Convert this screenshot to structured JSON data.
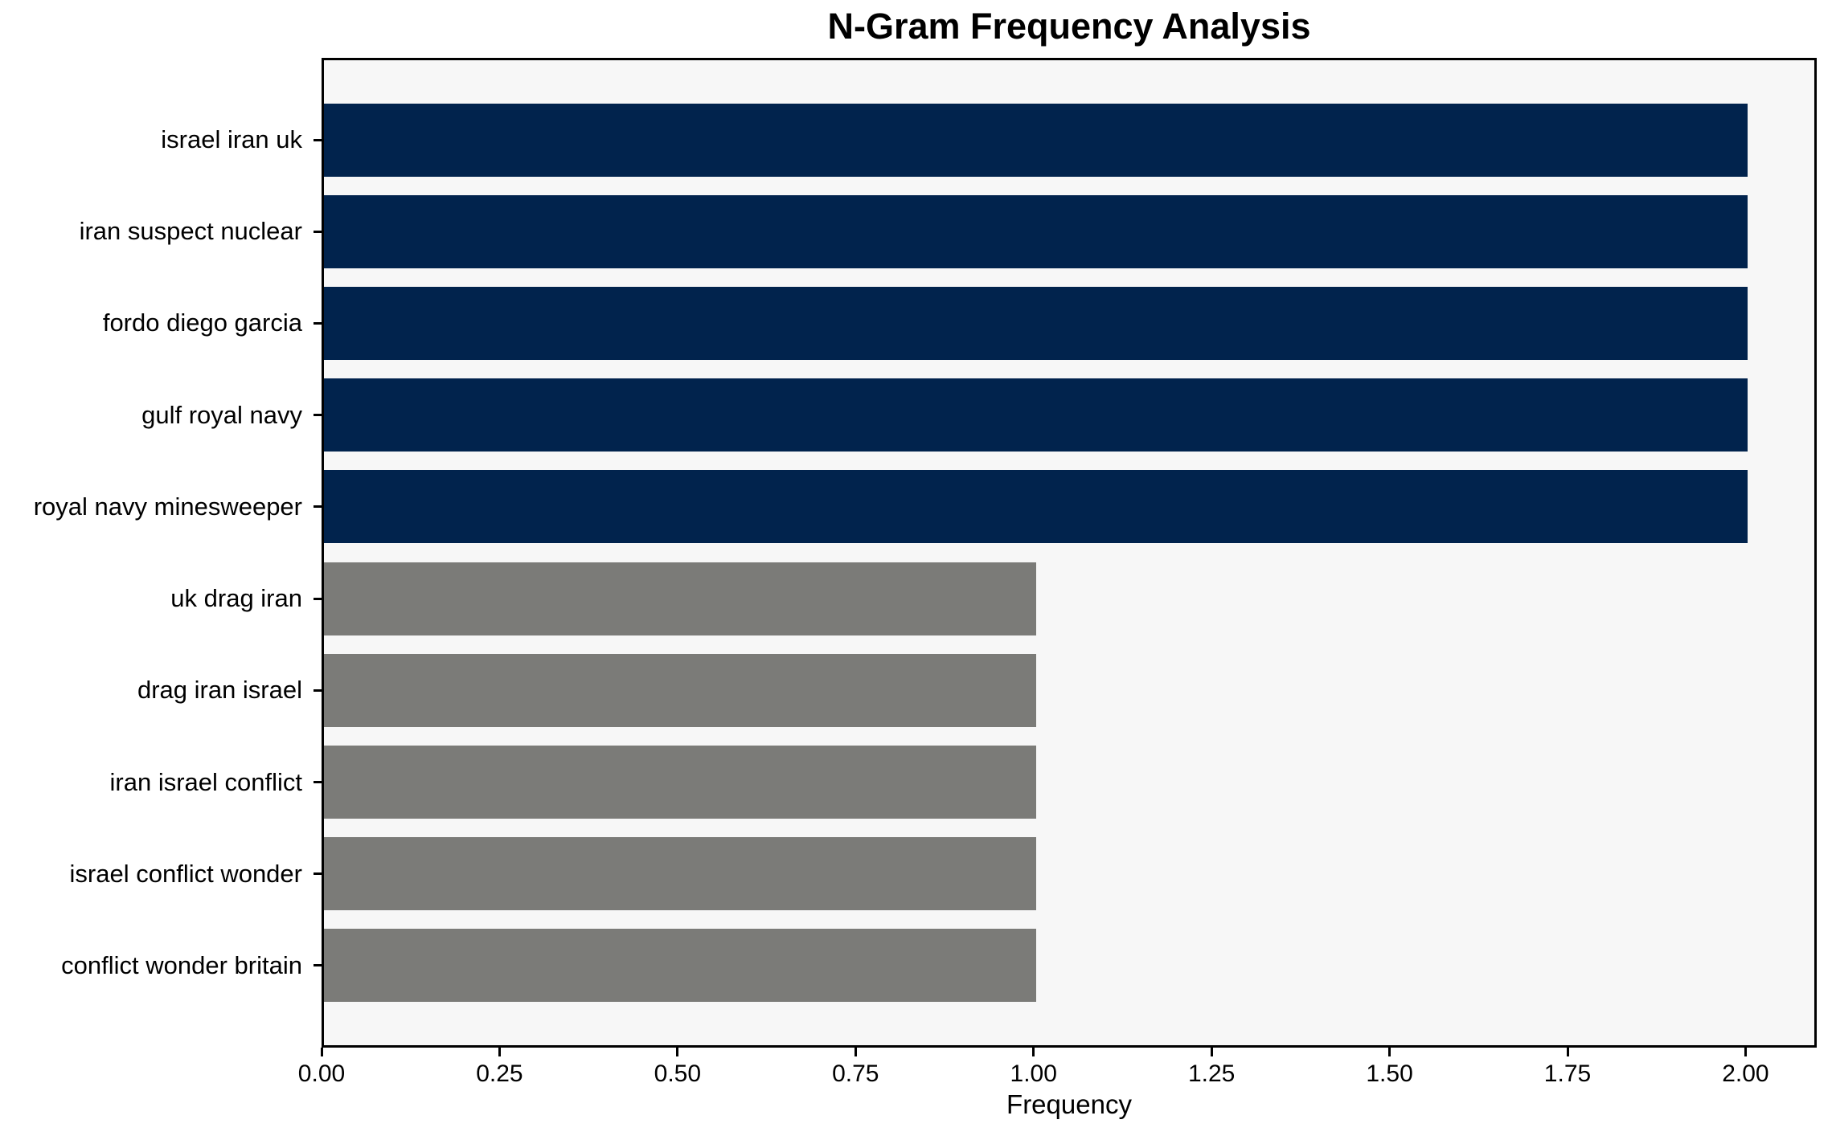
{
  "chart_data": {
    "type": "bar",
    "orientation": "horizontal",
    "title": "N-Gram Frequency Analysis",
    "xlabel": "Frequency",
    "ylabel": "",
    "categories": [
      "israel iran uk",
      "iran suspect nuclear",
      "fordo diego garcia",
      "gulf royal navy",
      "royal navy minesweeper",
      "uk drag iran",
      "drag iran israel",
      "iran israel conflict",
      "israel conflict wonder",
      "conflict wonder britain"
    ],
    "values": [
      2,
      2,
      2,
      2,
      2,
      1,
      1,
      1,
      1,
      1
    ],
    "bar_colors": [
      "#01234d",
      "#01234d",
      "#01234d",
      "#01234d",
      "#01234d",
      "#7b7b78",
      "#7b7b78",
      "#7b7b78",
      "#7b7b78",
      "#7b7b78"
    ],
    "xlim": [
      0,
      2.1
    ],
    "x_ticks": [
      0.0,
      0.25,
      0.5,
      0.75,
      1.0,
      1.25,
      1.5,
      1.75,
      2.0
    ],
    "x_tick_labels": [
      "0.00",
      "0.25",
      "0.50",
      "0.75",
      "1.00",
      "1.25",
      "1.50",
      "1.75",
      "2.00"
    ],
    "grid": false,
    "legend": null,
    "colors": {
      "plot_background": "#f7f7f7",
      "figure_background": "#ffffff",
      "spine": "#000000",
      "bar_high": "#01234d",
      "bar_low": "#7b7b78"
    }
  }
}
